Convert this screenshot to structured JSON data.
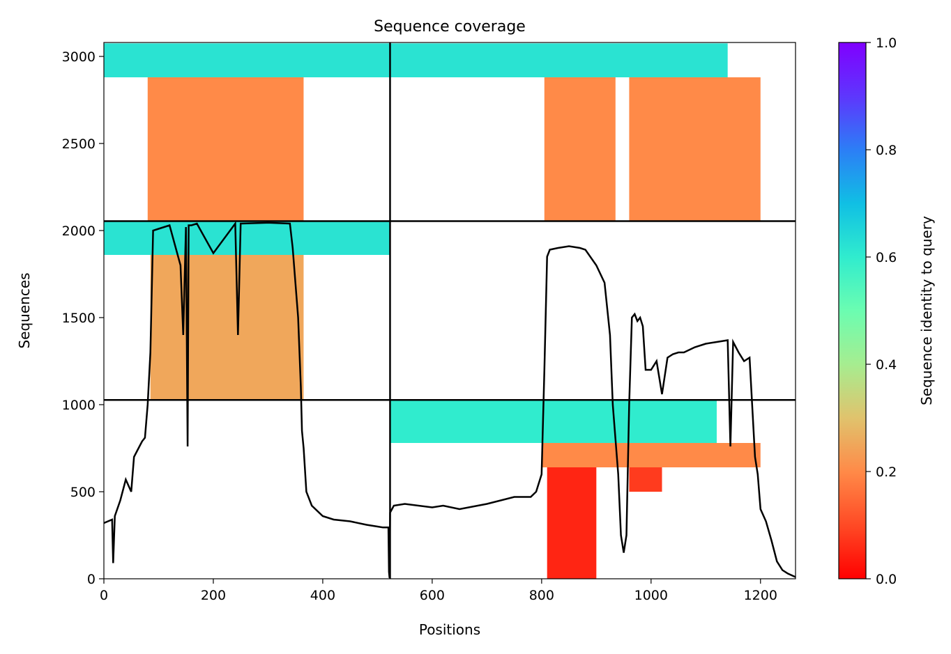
{
  "chart_data": {
    "type": "heatmap",
    "title": "Sequence coverage",
    "xlabel": "Positions",
    "ylabel": "Sequences",
    "xlim": [
      0,
      1264
    ],
    "ylim": [
      0,
      3080
    ],
    "x_ticks": [
      0,
      200,
      400,
      600,
      800,
      1000,
      1200
    ],
    "y_ticks": [
      0,
      500,
      1000,
      1500,
      2000,
      2500,
      3000
    ],
    "x_tick_labels": [
      "0",
      "200",
      "400",
      "600",
      "800",
      "1000",
      "1200"
    ],
    "y_tick_labels": [
      "0",
      "500",
      "1000",
      "1500",
      "2000",
      "2500",
      "3000"
    ],
    "colorbar": {
      "label": "Sequence identity to query",
      "range": [
        0.0,
        1.0
      ],
      "ticks": [
        0.0,
        0.2,
        0.4,
        0.6,
        0.8,
        1.0
      ],
      "tick_labels": [
        "0.0",
        "0.2",
        "0.4",
        "0.6",
        "0.8",
        "1.0"
      ],
      "colormap": "rainbow_r"
    },
    "chain_boundaries_x": [
      523
    ],
    "chain_boundaries_y": [
      1027,
      2054
    ],
    "coverage_blocks": [
      {
        "x0": 80,
        "x1": 365,
        "y0": 2054,
        "y1": 2880,
        "identity": 0.2
      },
      {
        "x0": 0,
        "x1": 523,
        "y0": 2880,
        "y1": 3075,
        "identity": 0.62
      },
      {
        "x0": 805,
        "x1": 935,
        "y0": 2054,
        "y1": 2880,
        "identity": 0.2
      },
      {
        "x0": 960,
        "x1": 1200,
        "y0": 2054,
        "y1": 2880,
        "identity": 0.2
      },
      {
        "x0": 523,
        "x1": 1140,
        "y0": 2880,
        "y1": 3075,
        "identity": 0.62
      },
      {
        "x0": 85,
        "x1": 365,
        "y0": 1027,
        "y1": 1860,
        "identity": 0.25
      },
      {
        "x0": 0,
        "x1": 523,
        "y0": 1860,
        "y1": 2054,
        "identity": 0.62
      },
      {
        "x0": 523,
        "x1": 1120,
        "y0": 780,
        "y1": 1027,
        "identity": 0.6
      },
      {
        "x0": 800,
        "x1": 1200,
        "y0": 640,
        "y1": 780,
        "identity": 0.2
      },
      {
        "x0": 810,
        "x1": 900,
        "y0": 0,
        "y1": 640,
        "identity": 0.05
      },
      {
        "x0": 960,
        "x1": 1020,
        "y0": 500,
        "y1": 640,
        "identity": 0.08
      }
    ],
    "coverage_line": {
      "x": [
        0,
        15,
        17,
        20,
        30,
        40,
        50,
        55,
        60,
        65,
        70,
        75,
        80,
        85,
        90,
        100,
        120,
        140,
        145,
        150,
        153,
        155,
        160,
        170,
        200,
        240,
        245,
        250,
        300,
        340,
        345,
        350,
        355,
        360,
        362,
        365,
        370,
        380,
        400,
        420,
        450,
        480,
        500,
        510,
        520,
        521,
        522,
        523,
        530,
        550,
        600,
        620,
        650,
        700,
        750,
        780,
        790,
        800,
        805,
        810,
        815,
        830,
        850,
        870,
        880,
        900,
        915,
        925,
        930,
        940,
        945,
        950,
        955,
        960,
        965,
        970,
        975,
        980,
        985,
        990,
        1000,
        1010,
        1020,
        1030,
        1040,
        1050,
        1060,
        1080,
        1100,
        1120,
        1140,
        1145,
        1150,
        1160,
        1170,
        1180,
        1190,
        1195,
        1200,
        1210,
        1220,
        1230,
        1240,
        1250,
        1264
      ],
      "y": [
        320,
        340,
        90,
        360,
        450,
        570,
        500,
        700,
        730,
        760,
        790,
        810,
        1000,
        1300,
        2000,
        2010,
        2030,
        1800,
        1400,
        2020,
        760,
        2030,
        2030,
        2040,
        1870,
        2040,
        1400,
        2040,
        2045,
        2040,
        1900,
        1700,
        1500,
        1100,
        850,
        750,
        500,
        420,
        360,
        340,
        330,
        310,
        300,
        295,
        295,
        40,
        5,
        380,
        420,
        430,
        410,
        420,
        400,
        430,
        470,
        470,
        500,
        600,
        1200,
        1850,
        1890,
        1900,
        1910,
        1900,
        1890,
        1800,
        1700,
        1400,
        1000,
        600,
        250,
        150,
        250,
        1000,
        1500,
        1520,
        1480,
        1500,
        1450,
        1200,
        1200,
        1250,
        1060,
        1270,
        1290,
        1300,
        1300,
        1330,
        1350,
        1360,
        1370,
        760,
        1360,
        1300,
        1250,
        1270,
        700,
        600,
        400,
        330,
        220,
        100,
        50,
        30,
        10
      ]
    }
  }
}
